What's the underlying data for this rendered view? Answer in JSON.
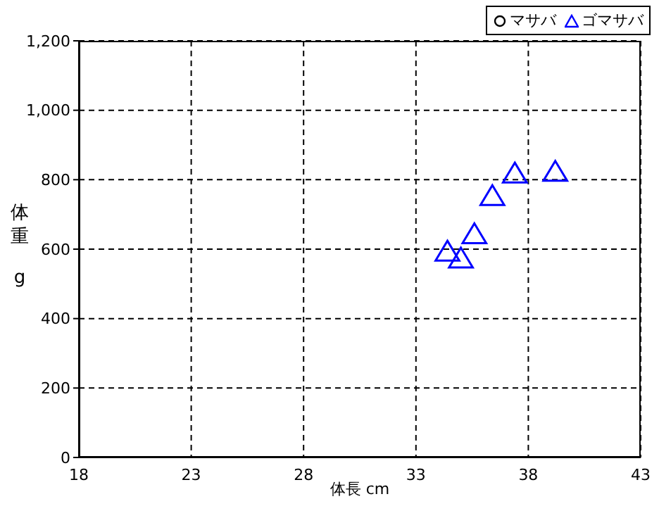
{
  "chart_data": {
    "type": "scatter",
    "xlabel": "体長 cm",
    "ylabel": "体重 g",
    "xlim": [
      18,
      43
    ],
    "xticks": [
      18,
      23,
      28,
      33,
      38,
      43
    ],
    "ylim": [
      0,
      1200
    ],
    "yticks": [
      0,
      {
        "value": 200,
        "label": "200"
      },
      {
        "value": 400,
        "label": "400"
      },
      {
        "value": 600,
        "label": "600"
      },
      {
        "value": 800,
        "label": "800"
      },
      {
        "value": 1000,
        "label": "1,000"
      },
      {
        "value": 1200,
        "label": "1,200"
      }
    ],
    "grid": true,
    "legend": "top right",
    "series": [
      {
        "name": "マサバ",
        "color": "#000000",
        "marker": "circle"
      },
      {
        "name": "ゴマサバ",
        "color": "#0000ff",
        "marker": "triangle",
        "x": [
          34.4,
          35.0,
          35.6,
          36.4,
          37.4,
          39.2
        ],
        "values": [
          590,
          570,
          640,
          750,
          815,
          820
        ]
      }
    ]
  }
}
